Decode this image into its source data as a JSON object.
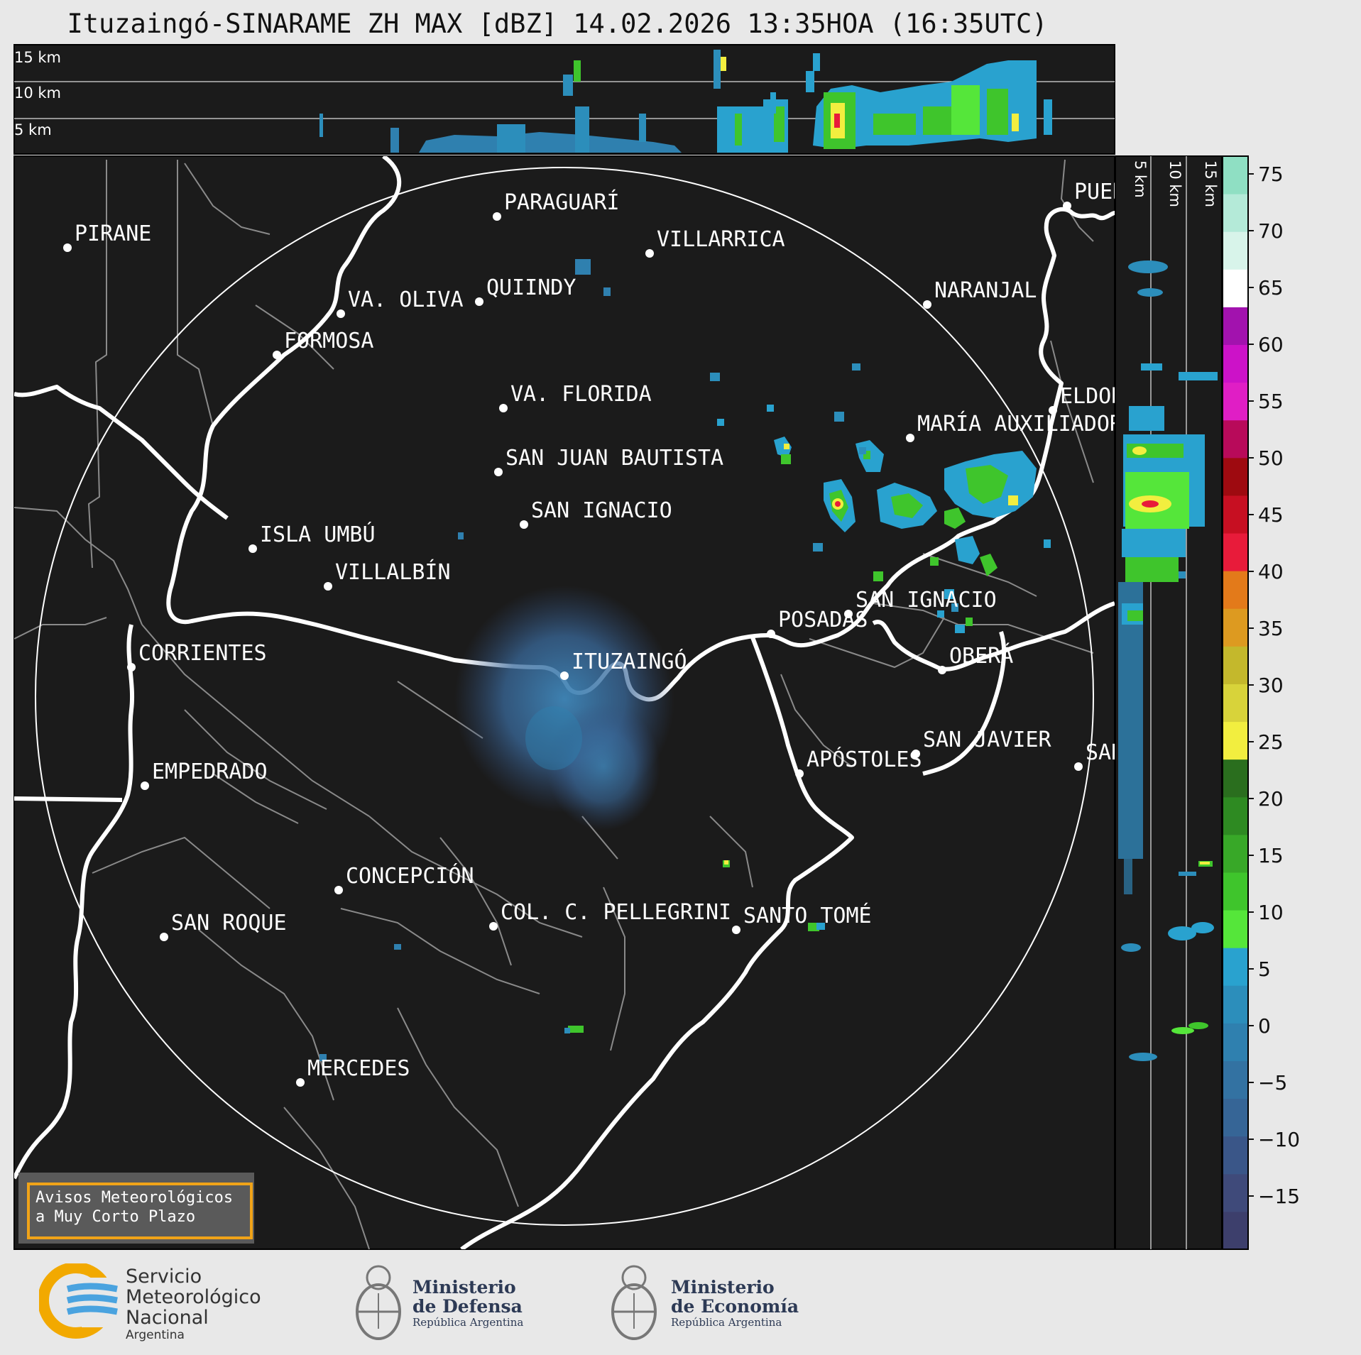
{
  "title": "Ituzaingó-SINARAME ZH MAX [dBZ] 14.02.2026 13:35HOA (16:35UTC)",
  "top_panel": {
    "altitude_labels": [
      "15 km",
      "10 km",
      "5 km"
    ]
  },
  "side_panel": {
    "altitude_labels": [
      "5 km",
      "10 km",
      "15 km"
    ]
  },
  "colorbar": {
    "ticks": [
      "75",
      "70",
      "65",
      "60",
      "55",
      "50",
      "45",
      "40",
      "35",
      "30",
      "25",
      "20",
      "15",
      "10",
      "5",
      "0",
      "−5",
      "−10",
      "−15"
    ],
    "scale_colors": [
      "#3d3f6c",
      "#3f4a7a",
      "#3a5688",
      "#366596",
      "#3372a2",
      "#2f80af",
      "#2c8ebb",
      "#29a2cf",
      "#55e63a",
      "#3fc52c",
      "#38a828",
      "#2e8a22",
      "#2a6e1e",
      "#f2ee3f",
      "#d8d33a",
      "#c4b82c",
      "#dd9a20",
      "#e37a1a",
      "#e81b3a",
      "#c70f22",
      "#9e0a10",
      "#b80a5a",
      "#e01ec5",
      "#cc12c8",
      "#a212ae",
      "#ffffff",
      "#d8f4ea",
      "#b4ead8",
      "#8fdfc3"
    ]
  },
  "map": {
    "cities": [
      {
        "name": "PIRANE"
      },
      {
        "name": "PARAGUARÍ"
      },
      {
        "name": "VILLARRICA"
      },
      {
        "name": "QUIINDY"
      },
      {
        "name": "VA. OLIVA"
      },
      {
        "name": "NARANJAL"
      },
      {
        "name": "FORMOSA"
      },
      {
        "name": "VA. FLORIDA"
      },
      {
        "name": "ELDORADO"
      },
      {
        "name": "MARÍA AUXILIADORA"
      },
      {
        "name": "SAN JUAN BAUTISTA"
      },
      {
        "name": "SAN IGNACIO"
      },
      {
        "name": "ISLA UMBÚ"
      },
      {
        "name": "VILLALBÍN"
      },
      {
        "name": "SAN IGNACIO"
      },
      {
        "name": "POSADAS"
      },
      {
        "name": "CORRIENTES"
      },
      {
        "name": "ITUZAINGÓ"
      },
      {
        "name": "OBERÁ"
      },
      {
        "name": "APÓSTOLES"
      },
      {
        "name": "SAN JAVIER"
      },
      {
        "name": "SAN VICENTE"
      },
      {
        "name": "EMPEDRADO"
      },
      {
        "name": "CONCEPCIÓN"
      },
      {
        "name": "COL. C. PELLEGRINI"
      },
      {
        "name": "SANTO TOMÉ"
      },
      {
        "name": "SAN ROQUE"
      },
      {
        "name": "MERCEDES"
      },
      {
        "name": "PUERTO IGUAZÚ"
      }
    ]
  },
  "warning": {
    "line1": "Avisos Meteorológicos",
    "line2": "a Muy Corto Plazo"
  },
  "logos": {
    "smn": {
      "line1": "Servicio",
      "line2": "Meteorológico",
      "line3": "Nacional",
      "line4": "Argentina"
    },
    "defensa": {
      "line1": "Ministerio",
      "line2": "de Defensa",
      "line3": "República Argentina"
    },
    "economia": {
      "line1": "Ministerio",
      "line2": "de Economía",
      "line3": "República Argentina"
    }
  }
}
